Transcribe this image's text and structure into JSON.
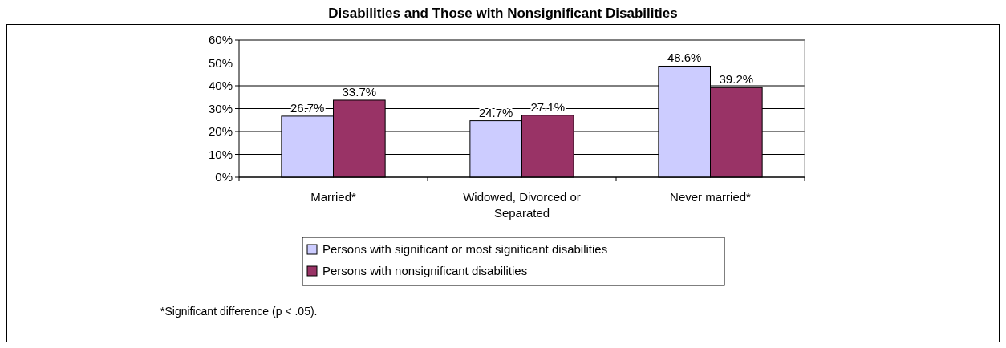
{
  "chart_data": {
    "type": "bar",
    "title": "Disabilities and Those with Nonsignificant Disabilities",
    "categories": [
      "Married*",
      "Widowed, Divorced or Separated",
      "Never married*"
    ],
    "series": [
      {
        "name": "Persons with significant or most significant disabilities",
        "color": "#ccccff",
        "values": [
          26.7,
          24.7,
          48.6
        ],
        "value_labels": [
          "26.7%",
          "24.7%",
          "48.6%"
        ]
      },
      {
        "name": "Persons with nonsignificant disabilities",
        "color": "#993366",
        "values": [
          33.7,
          27.1,
          39.2
        ],
        "value_labels": [
          "33.7%",
          "27.1%",
          "39.2%"
        ]
      }
    ],
    "ylim": [
      0,
      60
    ],
    "yticks": [
      {
        "value": 0,
        "label": "0%"
      },
      {
        "value": 10,
        "label": "10%"
      },
      {
        "value": 20,
        "label": "20%"
      },
      {
        "value": 30,
        "label": "30%"
      },
      {
        "value": 40,
        "label": "40%"
      },
      {
        "value": 50,
        "label": "50%"
      },
      {
        "value": 60,
        "label": "60%"
      }
    ],
    "grid": "y",
    "legend": "bottom",
    "annotations": [
      "*Significant difference (p < .05)."
    ]
  }
}
